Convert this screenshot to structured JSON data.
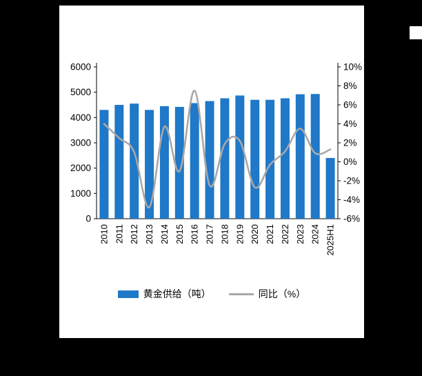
{
  "page": {
    "background": "#000000",
    "panel_background": "#ffffff"
  },
  "chart_data": {
    "type": "bar+line",
    "title": "",
    "categories": [
      "2010",
      "2011",
      "2012",
      "2013",
      "2014",
      "2015",
      "2016",
      "2017",
      "2018",
      "2019",
      "2020",
      "2021",
      "2022",
      "2023",
      "2024",
      "2025H1"
    ],
    "series": [
      {
        "name": "黄金供给（吨）",
        "type": "bar",
        "axis": "left",
        "color": "#1F78C8",
        "values": [
          4300,
          4500,
          4550,
          4300,
          4450,
          4420,
          4570,
          4650,
          4760,
          4870,
          4700,
          4700,
          4760,
          4920,
          4930,
          2400
        ]
      },
      {
        "name": "同比（%）",
        "type": "line",
        "axis": "right",
        "color": "#A8A8A8",
        "values": [
          4.0,
          2.5,
          1.0,
          -4.8,
          3.7,
          -1.0,
          7.5,
          -2.5,
          1.9,
          2.2,
          -2.7,
          -0.3,
          1.1,
          3.5,
          0.9,
          1.3
        ]
      }
    ],
    "left_axis": {
      "min": 0,
      "max": 6000,
      "step": 1000,
      "ticks": [
        "0",
        "1000",
        "2000",
        "3000",
        "4000",
        "5000",
        "6000"
      ]
    },
    "right_axis": {
      "min": -6,
      "max": 10,
      "step": 2,
      "ticks": [
        "-6%",
        "-4%",
        "-2%",
        "0%",
        "2%",
        "4%",
        "6%",
        "8%",
        "10%"
      ]
    },
    "grid": false,
    "legend_position": "bottom",
    "legend": [
      {
        "label": "黄金供给（吨）",
        "swatch": "bar"
      },
      {
        "label": "同比（%）",
        "swatch": "line"
      }
    ]
  }
}
